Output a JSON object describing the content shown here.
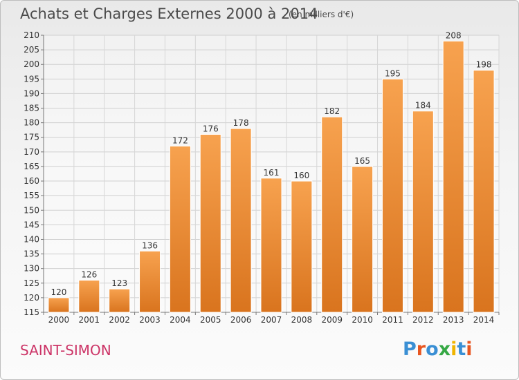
{
  "header": {
    "title": "Achats et Charges Externes 2000 à 2014",
    "subtitle": "(en milliers d'€)"
  },
  "footer": {
    "commune": "SAINT-SIMON",
    "brand": "Proxiti"
  },
  "colors": {
    "bar_light": "#f7a24f",
    "bar_dark": "#d9741e",
    "commune_text": "#cc3366",
    "brand_letters": [
      "#3a8fd4",
      "#e8551f",
      "#3a8fd4",
      "#35a844",
      "#f0b400",
      "#3a8fd4",
      "#e8551f"
    ]
  },
  "chart_data": {
    "type": "bar",
    "title": "Achats et Charges Externes 2000 à 2014",
    "subtitle": "(en milliers d'€)",
    "xlabel": "",
    "ylabel": "",
    "categories": [
      "2000",
      "2001",
      "2002",
      "2003",
      "2004",
      "2005",
      "2006",
      "2007",
      "2008",
      "2009",
      "2010",
      "2011",
      "2012",
      "2013",
      "2014"
    ],
    "values": [
      120,
      126,
      123,
      136,
      172,
      176,
      178,
      161,
      160,
      182,
      165,
      195,
      184,
      208,
      198
    ],
    "ylim": [
      115,
      210
    ],
    "yticks": [
      115,
      120,
      125,
      130,
      135,
      140,
      145,
      150,
      155,
      160,
      165,
      170,
      175,
      180,
      185,
      190,
      195,
      200,
      205,
      210
    ],
    "grid": true,
    "data_labels": true
  }
}
